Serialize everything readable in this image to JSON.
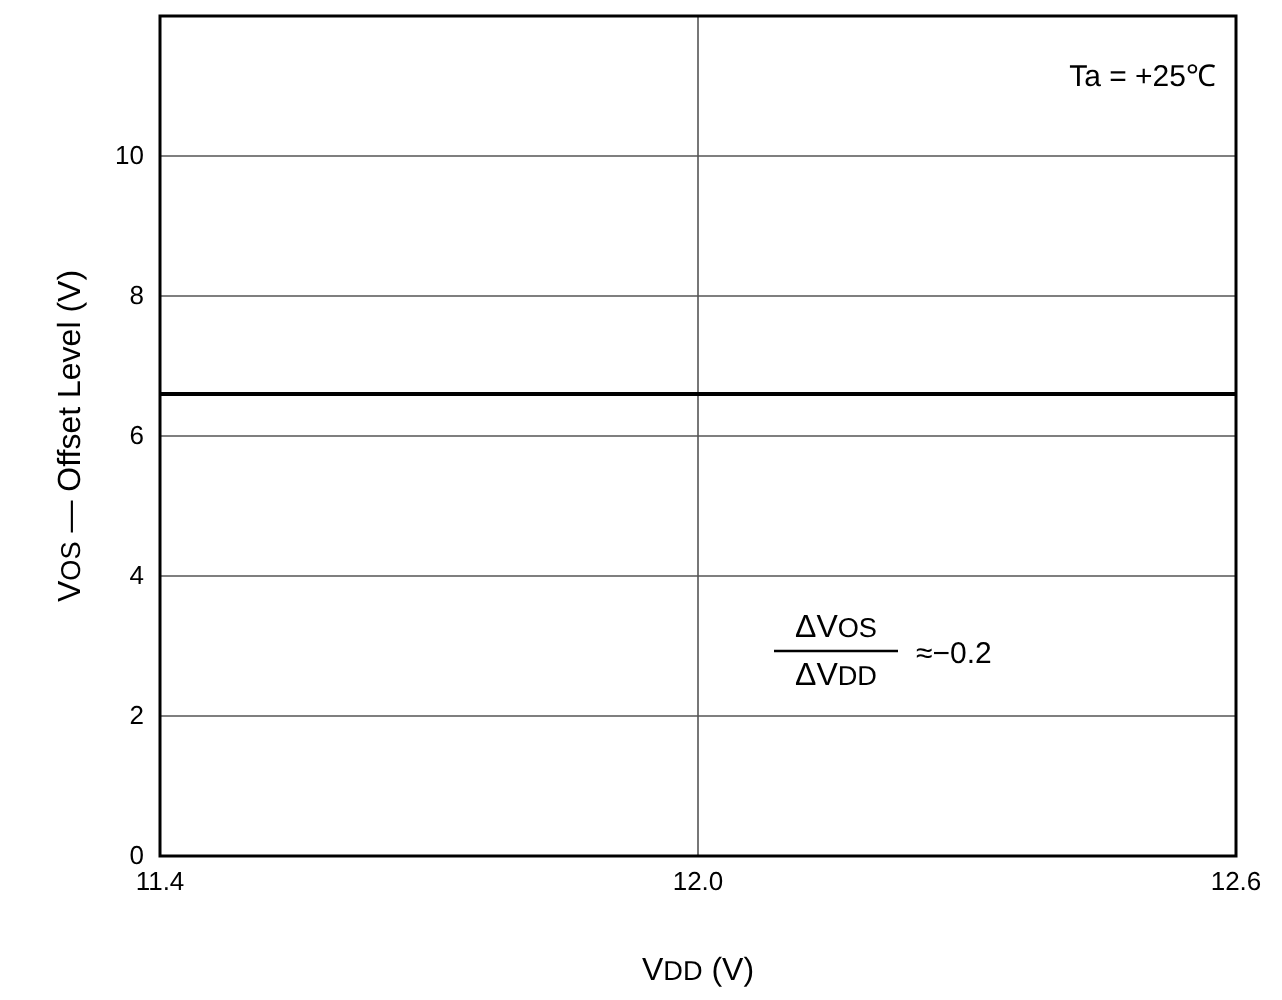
{
  "chart_data": {
    "type": "line",
    "xlabel": "V$_{DD}$ (V)",
    "ylabel": "V$_{OS}$ — Offset Level (V)",
    "x": [
      11.4,
      12.6
    ],
    "series": [
      {
        "color": "#000000",
        "values": [
          6.6,
          6.6
        ]
      }
    ],
    "xlim": [
      11.4,
      12.6
    ],
    "xticks": [
      11.4,
      {
        "value": 12,
        "label": "12.0"
      },
      12.6
    ],
    "ylim": [
      0,
      12
    ],
    "yticks": [
      0,
      2,
      4,
      6,
      8,
      10
    ],
    "grid": true,
    "marker": "none",
    "line_style": "solid",
    "annotations": [
      "Ta = +25℃",
      "ΔV$_{OS}$",
      "ΔV$_{DD}$",
      "≈−0.2"
    ]
  }
}
